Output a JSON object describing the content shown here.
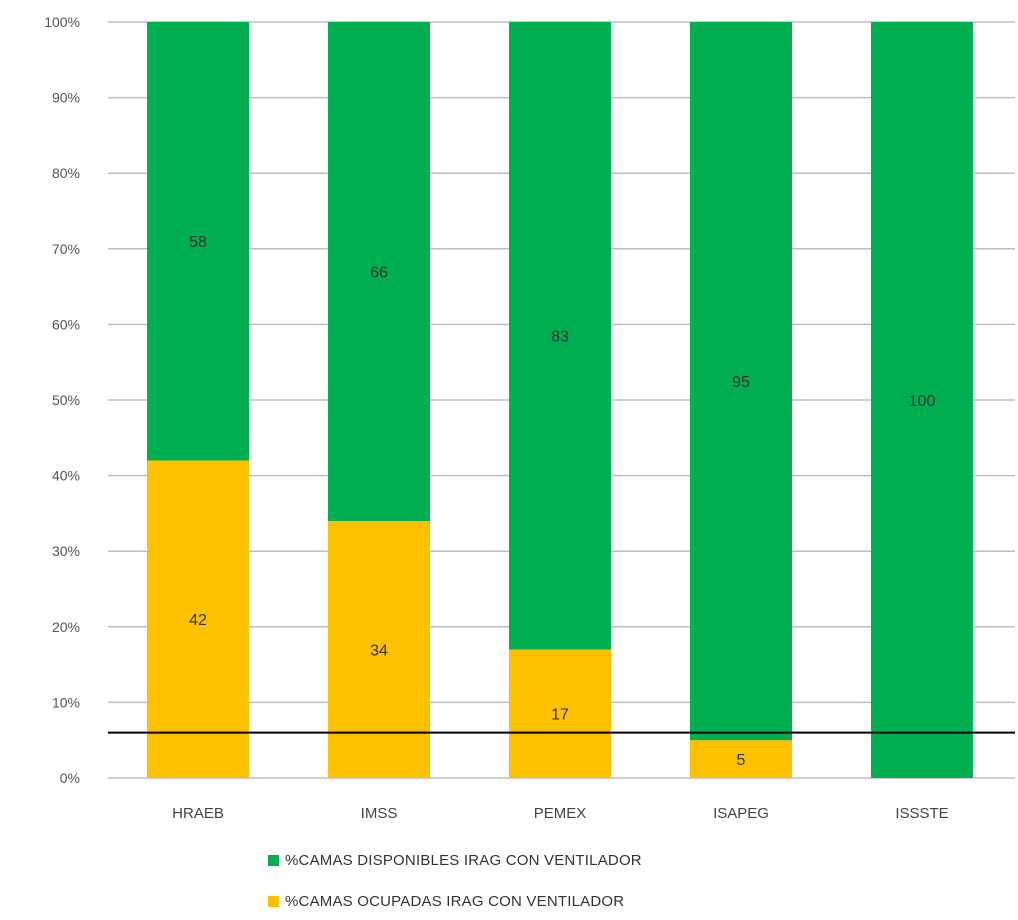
{
  "chart_data": {
    "type": "bar",
    "stacked": true,
    "categories": [
      "HRAEB",
      "IMSS",
      "PEMEX",
      "ISAPEG",
      "ISSSTE"
    ],
    "series": [
      {
        "name": "%CAMAS OCUPADAS IRAG CON VENTILADOR",
        "values": [
          42,
          34,
          17,
          5,
          0
        ],
        "color": "#ffc000"
      },
      {
        "name": "%CAMAS DISPONIBLES IRAG  CON VENTILADOR",
        "values": [
          58,
          66,
          83,
          95,
          100
        ],
        "color": "#00b050"
      }
    ],
    "data_labels": {
      "ocupadas": [
        "42",
        "34",
        "17",
        "5",
        ""
      ],
      "disponibles": [
        "58",
        "66",
        "83",
        "95",
        "100"
      ]
    },
    "ylim": [
      0,
      100
    ],
    "yticks": [
      "0%",
      "10%",
      "20%",
      "30%",
      "40%",
      "50%",
      "60%",
      "70%",
      "80%",
      "90%",
      "100%"
    ],
    "reference_line": 6,
    "grid": true,
    "legend_position": "bottom",
    "title": "",
    "xlabel": "",
    "ylabel": ""
  },
  "legend": {
    "disponibles": "%CAMAS DISPONIBLES IRAG  CON VENTILADOR",
    "ocupadas": "%CAMAS OCUPADAS IRAG CON VENTILADOR"
  }
}
